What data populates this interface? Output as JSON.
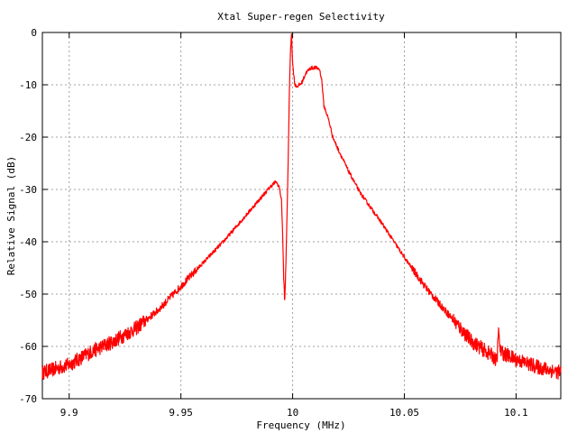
{
  "chart_data": {
    "type": "line",
    "title": "Xtal Super-regen Selectivity",
    "xlabel": "Frequency (MHz)",
    "ylabel": "Relative Signal (dB)",
    "xlim": [
      9.888,
      10.12
    ],
    "ylim": [
      -70,
      0
    ],
    "xticks": [
      9.9,
      9.95,
      10,
      10.05,
      10.1
    ],
    "xtick_labels": [
      "9.9",
      "9.95",
      "10",
      "10.05",
      "10.1"
    ],
    "yticks": [
      0,
      -10,
      -20,
      -30,
      -40,
      -50,
      -60,
      -70
    ],
    "ytick_labels": [
      "0",
      "-10",
      "-20",
      "-30",
      "-40",
      "-50",
      "-60",
      "-70"
    ],
    "grid": true,
    "series_color": "#ff0000",
    "series": [
      {
        "x": [
          9.888,
          9.9,
          9.91,
          9.92,
          9.93,
          9.94,
          9.95,
          9.96,
          9.97,
          9.98,
          9.985,
          9.99,
          9.9925,
          9.994,
          9.995,
          9.9955,
          9.996,
          9.9965,
          9.997,
          9.998,
          9.9985,
          9.999,
          9.9995,
          10.0,
          10.001,
          10.002,
          10.004,
          10.006,
          10.008,
          10.01,
          10.012,
          10.013,
          10.014,
          10.016,
          10.018,
          10.02,
          10.025,
          10.03,
          10.035,
          10.04,
          10.05,
          10.06,
          10.07,
          10.08,
          10.09,
          10.0915,
          10.092,
          10.093,
          10.095,
          10.1,
          10.11,
          10.12
        ],
        "y": [
          -65,
          -63.5,
          -61,
          -59,
          -56.5,
          -53,
          -48.5,
          -44,
          -39.5,
          -34.5,
          -32,
          -29.5,
          -28.5,
          -29.5,
          -32,
          -38,
          -47,
          -51.5,
          -44,
          -25,
          -12,
          -4,
          0,
          -6,
          -10,
          -10.3,
          -9.7,
          -7.7,
          -6.8,
          -6.7,
          -7,
          -9,
          -14,
          -16.5,
          -20,
          -22,
          -26.5,
          -30.5,
          -33.5,
          -36.5,
          -43,
          -49,
          -54,
          -59,
          -62,
          -63,
          -57,
          -61,
          -61.5,
          -62.5,
          -64,
          -65
        ]
      }
    ]
  }
}
